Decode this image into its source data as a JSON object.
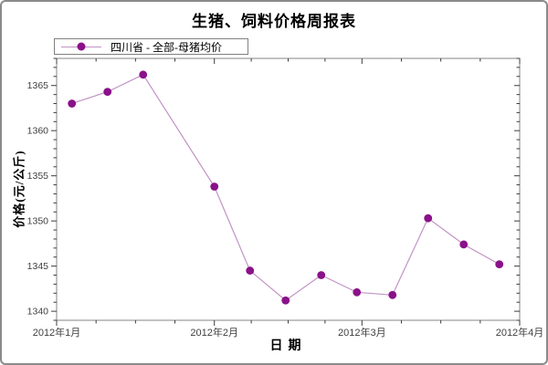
{
  "title": "生猪、饲料价格周报表",
  "legend": {
    "label": "四川省 - 全部-母猪均价"
  },
  "colors": {
    "line": "#c193c4",
    "marker": "#8a1189",
    "plot_border": "#858585",
    "canvas_border": "#8a8a8a",
    "tick": "#3c3c3c",
    "background": "#ffffff"
  },
  "chart_data": {
    "type": "line",
    "title": "生猪、饲料价格周报表",
    "xlabel": "日期",
    "ylabel": "价格(元/公斤)",
    "legend_position": "top-left",
    "grid": false,
    "series": [
      {
        "name": "四川省 - 全部-母猪均价",
        "points": [
          {
            "date": "2012-01-04",
            "day": 3,
            "value": 1363.0
          },
          {
            "date": "2012-01-11",
            "day": 10,
            "value": 1364.3
          },
          {
            "date": "2012-01-18",
            "day": 17,
            "value": 1366.2
          },
          {
            "date": "2012-02-01",
            "day": 31,
            "value": 1353.8
          },
          {
            "date": "2012-02-08",
            "day": 38,
            "value": 1344.5
          },
          {
            "date": "2012-02-15",
            "day": 45,
            "value": 1341.2
          },
          {
            "date": "2012-02-22",
            "day": 52,
            "value": 1344.0
          },
          {
            "date": "2012-02-29",
            "day": 59,
            "value": 1342.1
          },
          {
            "date": "2012-03-07",
            "day": 66,
            "value": 1341.8
          },
          {
            "date": "2012-03-14",
            "day": 73,
            "value": 1350.3
          },
          {
            "date": "2012-03-21",
            "day": 80,
            "value": 1347.4
          },
          {
            "date": "2012-03-28",
            "day": 87,
            "value": 1345.2
          }
        ]
      }
    ],
    "x_axis": {
      "range_days": [
        0,
        91
      ],
      "major_ticks": [
        {
          "day": 0,
          "label": "2012年1月"
        },
        {
          "day": 31,
          "label": "2012年2月"
        },
        {
          "day": 60,
          "label": "2012年3月"
        },
        {
          "day": 91,
          "label": "2012年4月"
        }
      ],
      "minor_ticks_per_interval": 3
    },
    "y_axis": {
      "range": [
        1339,
        1368
      ],
      "major_tick_step": 5,
      "minor_tick_step": 1,
      "major_tick_labels": [
        "1340",
        "1345",
        "1350",
        "1355",
        "1360",
        "1365"
      ]
    }
  }
}
